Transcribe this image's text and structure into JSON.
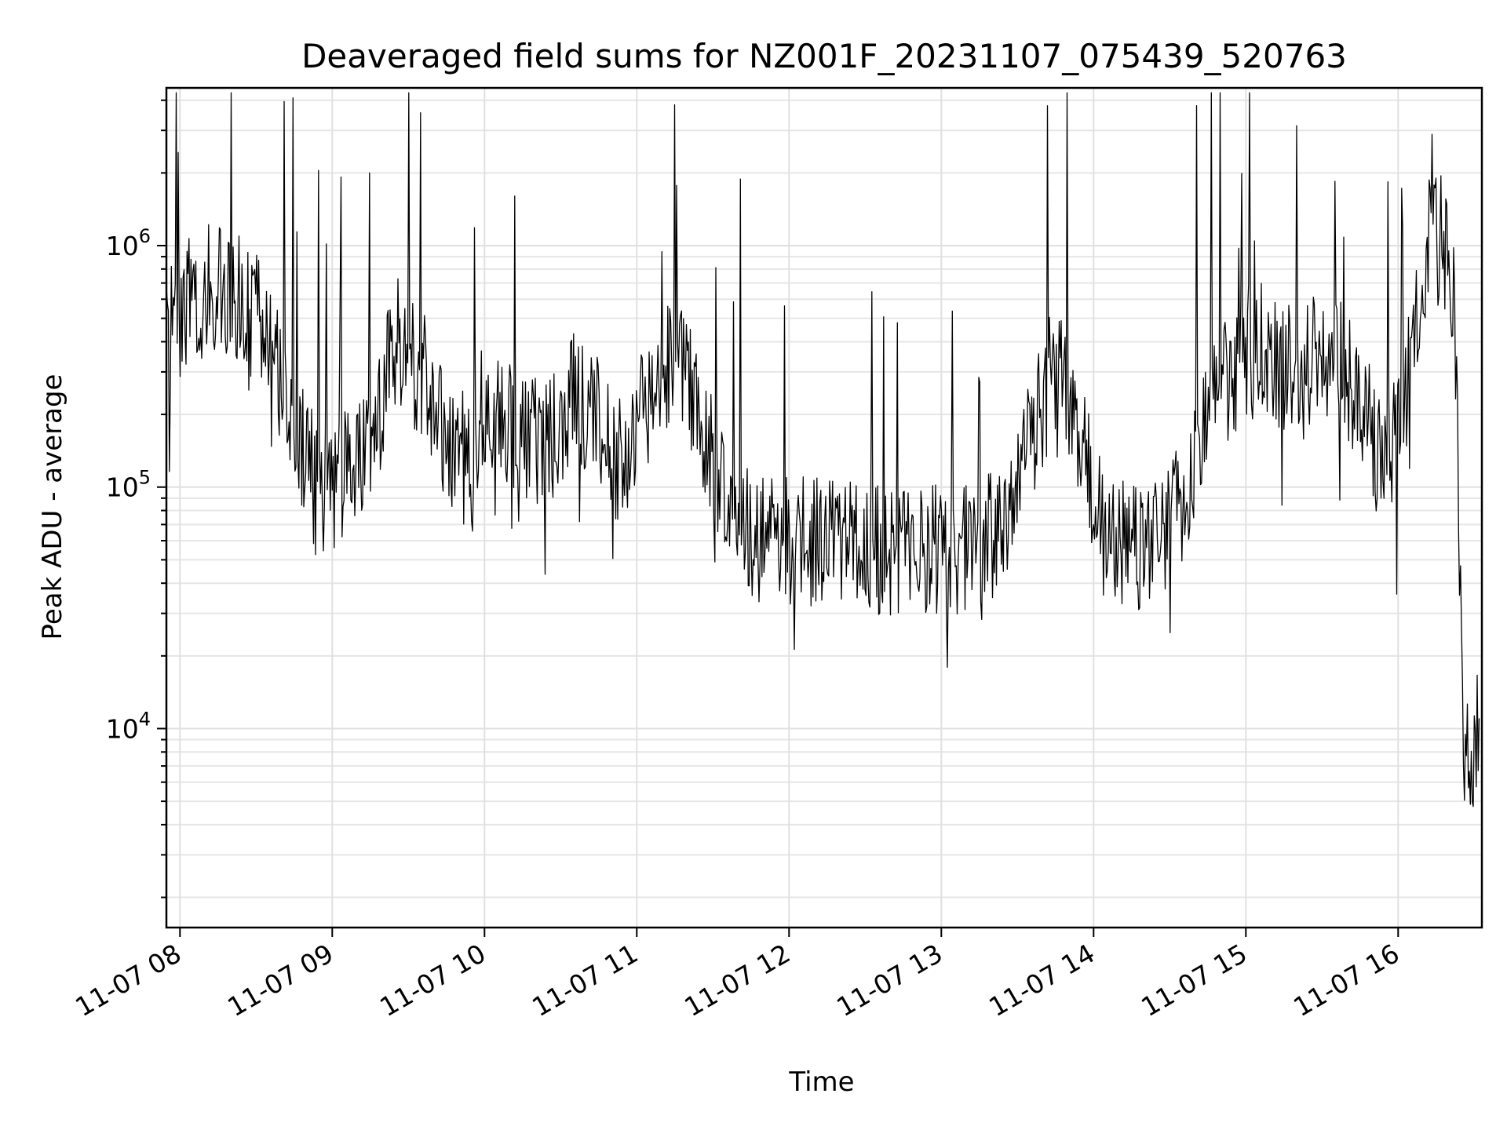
{
  "chart_data": {
    "type": "line",
    "title": "Deaveraged field sums for NZ001F_20231107_075439_520763",
    "xlabel": "Time",
    "ylabel": "Peak ADU - average",
    "x_scale": "time",
    "y_scale": "log",
    "x_range": [
      "2023-11-07 07:54:39",
      "2023-11-07 16:33:00"
    ],
    "ylim": [
      1500,
      4500000
    ],
    "grid": {
      "major": true,
      "minor_y": true
    },
    "legend": "none",
    "line_color": "#000000",
    "x_ticks": [
      {
        "label": "11-07 08",
        "time": "2023-11-07 08:00"
      },
      {
        "label": "11-07 09",
        "time": "2023-11-07 09:00"
      },
      {
        "label": "11-07 10",
        "time": "2023-11-07 10:00"
      },
      {
        "label": "11-07 11",
        "time": "2023-11-07 11:00"
      },
      {
        "label": "11-07 12",
        "time": "2023-11-07 12:00"
      },
      {
        "label": "11-07 13",
        "time": "2023-11-07 13:00"
      },
      {
        "label": "11-07 14",
        "time": "2023-11-07 14:00"
      },
      {
        "label": "11-07 15",
        "time": "2023-11-07 15:00"
      },
      {
        "label": "11-07 16",
        "time": "2023-11-07 16:00"
      }
    ],
    "y_ticks": [
      {
        "base": "10",
        "exp": "4",
        "value": 10000
      },
      {
        "base": "10",
        "exp": "5",
        "value": 100000
      },
      {
        "base": "10",
        "exp": "6",
        "value": 1000000
      }
    ],
    "series": [
      {
        "x": [
          "2023-11-07 07:55",
          "2023-11-07 08:05",
          "2023-11-07 08:15",
          "2023-11-07 08:25",
          "2023-11-07 08:35",
          "2023-11-07 08:45",
          "2023-11-07 08:55",
          "2023-11-07 09:05",
          "2023-11-07 09:15",
          "2023-11-07 09:25",
          "2023-11-07 09:35",
          "2023-11-07 09:45",
          "2023-11-07 09:55",
          "2023-11-07 10:05",
          "2023-11-07 10:15",
          "2023-11-07 10:25",
          "2023-11-07 10:35",
          "2023-11-07 10:45",
          "2023-11-07 10:55",
          "2023-11-07 11:05",
          "2023-11-07 11:15",
          "2023-11-07 11:25",
          "2023-11-07 11:35",
          "2023-11-07 11:45",
          "2023-11-07 11:55",
          "2023-11-07 12:05",
          "2023-11-07 12:15",
          "2023-11-07 12:25",
          "2023-11-07 12:35",
          "2023-11-07 12:45",
          "2023-11-07 12:55",
          "2023-11-07 13:05",
          "2023-11-07 13:15",
          "2023-11-07 13:25",
          "2023-11-07 13:35",
          "2023-11-07 13:45",
          "2023-11-07 13:55",
          "2023-11-07 14:05",
          "2023-11-07 14:15",
          "2023-11-07 14:25",
          "2023-11-07 14:35",
          "2023-11-07 14:45",
          "2023-11-07 14:55",
          "2023-11-07 15:05",
          "2023-11-07 15:15",
          "2023-11-07 15:25",
          "2023-11-07 15:35",
          "2023-11-07 15:45",
          "2023-11-07 15:55",
          "2023-11-07 16:05",
          "2023-11-07 16:12",
          "2023-11-07 16:18",
          "2023-11-07 16:22",
          "2023-11-07 16:26",
          "2023-11-07 16:32"
        ],
        "values": [
          430000,
          620000,
          680000,
          600000,
          420000,
          180000,
          90000,
          110000,
          130000,
          420000,
          300000,
          160000,
          120000,
          220000,
          150000,
          150000,
          240000,
          180000,
          120000,
          240000,
          330000,
          200000,
          90000,
          60000,
          60000,
          60000,
          60000,
          60000,
          55000,
          55000,
          57000,
          55000,
          60000,
          68000,
          150000,
          330000,
          160000,
          60000,
          55000,
          65000,
          80000,
          260000,
          300000,
          420000,
          300000,
          320000,
          380000,
          220000,
          120000,
          300000,
          1000000,
          1050000,
          650000,
          8000,
          9500
        ]
      }
    ]
  }
}
